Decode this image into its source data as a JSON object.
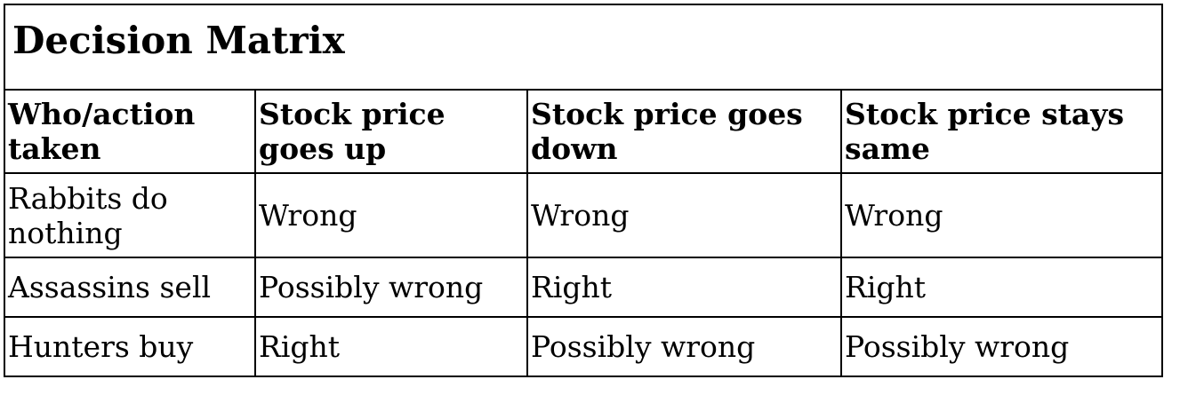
{
  "title": "Decision Matrix",
  "headers": [
    "Who/action taken",
    "Stock price goes up",
    "Stock price goes down",
    "Stock price stays same"
  ],
  "rows": [
    [
      "Rabbits do nothing",
      "Wrong",
      "Wrong",
      "Wrong"
    ],
    [
      "Assassins sell",
      "Possibly wrong",
      "Right",
      "Right"
    ],
    [
      "Hunters buy",
      "Right",
      "Possibly wrong",
      "Possibly wrong"
    ]
  ]
}
